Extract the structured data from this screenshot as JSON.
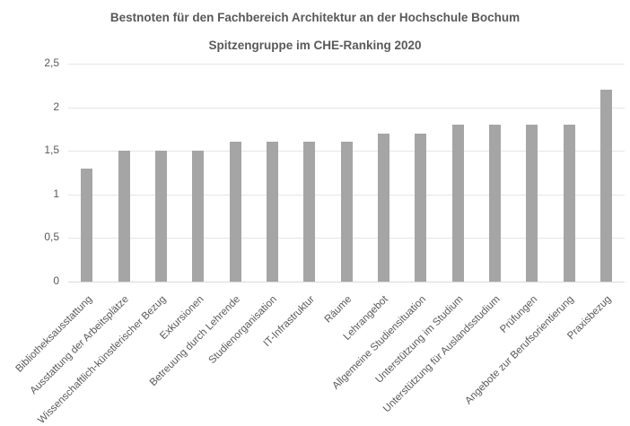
{
  "chart_data": {
    "type": "bar",
    "title": "Bestnoten für den Fachbereich Architektur an der Hochschule Bochum",
    "subtitle": "Spitzengruppe im CHE-Ranking 2020",
    "xlabel": "",
    "ylabel": "",
    "ylim": [
      0,
      2.5
    ],
    "yticks": [
      "0",
      "0,5",
      "1",
      "1,5",
      "2",
      "2,5"
    ],
    "grid": true,
    "legend": null,
    "bar_color": "#a5a5a5",
    "categories": [
      "Bibliotheksausstattung",
      "Ausstattung der Arbeitsplätze",
      "Wissenschaftlich-künstlerischer Bezug",
      "Exkursionen",
      "Betreuung durch Lehrende",
      "Studienorganisation",
      "IT-Infrastruktur",
      "Räume",
      "Lehrangebot",
      "Allgemeine Studiensituation",
      "Unterstützung im Studium",
      "Unterstützung für Auslandsstudium",
      "Prüfungen",
      "Angebote zur Berufsorientierung",
      "Praxisbezug"
    ],
    "values": [
      1.3,
      1.5,
      1.5,
      1.5,
      1.6,
      1.6,
      1.6,
      1.6,
      1.7,
      1.7,
      1.8,
      1.8,
      1.8,
      1.8,
      2.2
    ]
  }
}
